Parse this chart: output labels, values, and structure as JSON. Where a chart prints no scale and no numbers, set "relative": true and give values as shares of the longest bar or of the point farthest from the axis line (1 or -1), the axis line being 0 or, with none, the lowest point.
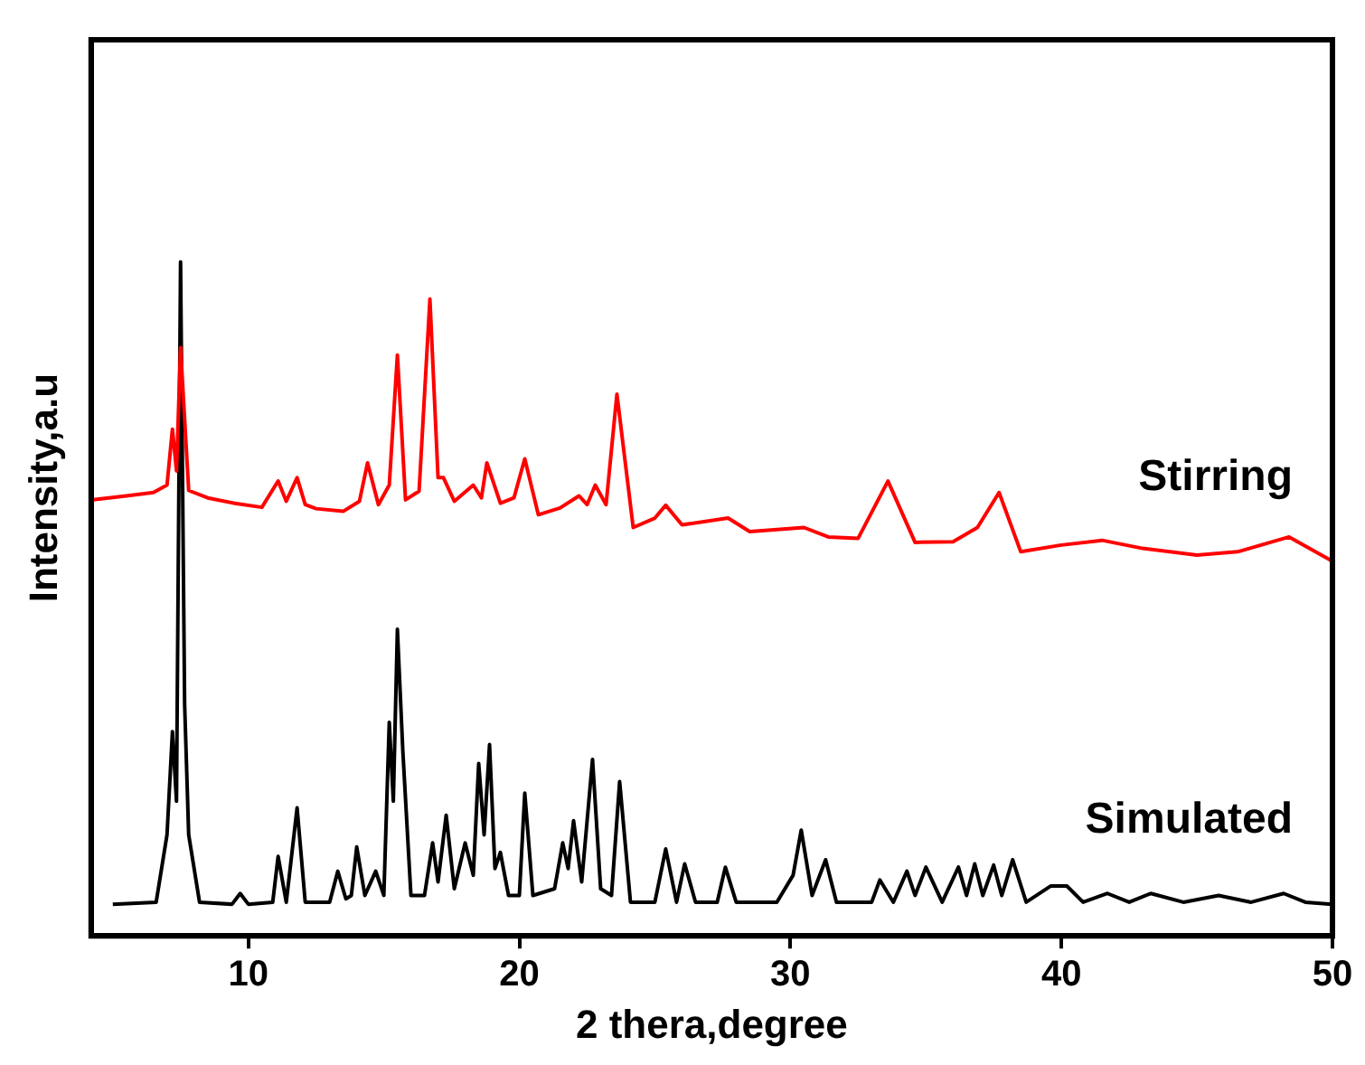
{
  "chart_data": {
    "type": "line",
    "xlabel": "2 thera,degree",
    "ylabel": "Intensity,a.u",
    "relative": true,
    "xlim": [
      4.2,
      50
    ],
    "xticks": [
      10,
      20,
      30,
      40,
      50
    ],
    "grid": false,
    "legend": false,
    "marker": "none",
    "line_style": "solid",
    "series": [
      {
        "name": "Stirring",
        "color": "#ff0000",
        "x": [
          4.2,
          5.5,
          6.5,
          7.0,
          7.2,
          7.35,
          7.5,
          7.8,
          8.5,
          9.5,
          10.5,
          11.1,
          11.4,
          11.8,
          12.1,
          12.5,
          13.5,
          14.1,
          14.4,
          14.8,
          15.2,
          15.5,
          15.8,
          16.3,
          16.7,
          17.0,
          17.2,
          17.6,
          18.3,
          18.6,
          18.8,
          19.3,
          19.8,
          20.2,
          20.7,
          21.5,
          22.2,
          22.5,
          22.8,
          23.2,
          23.6,
          24.2,
          25.0,
          25.4,
          26.0,
          27.7,
          28.5,
          30.5,
          31.4,
          32.5,
          33.6,
          34.6,
          36.0,
          36.9,
          37.7,
          38.5,
          40.0,
          41.5,
          43.0,
          45.0,
          46.5,
          48.4,
          50.0
        ],
        "values": [
          0.647,
          0.653,
          0.658,
          0.669,
          0.752,
          0.69,
          0.873,
          0.661,
          0.65,
          0.642,
          0.636,
          0.675,
          0.645,
          0.68,
          0.64,
          0.634,
          0.63,
          0.645,
          0.702,
          0.64,
          0.669,
          0.862,
          0.647,
          0.66,
          0.945,
          0.68,
          0.68,
          0.645,
          0.669,
          0.65,
          0.702,
          0.642,
          0.65,
          0.708,
          0.625,
          0.635,
          0.653,
          0.64,
          0.669,
          0.64,
          0.804,
          0.606,
          0.62,
          0.639,
          0.61,
          0.62,
          0.6,
          0.606,
          0.592,
          0.59,
          0.675,
          0.584,
          0.585,
          0.606,
          0.658,
          0.57,
          0.58,
          0.587,
          0.575,
          0.565,
          0.57,
          0.592,
          0.556
        ]
      },
      {
        "name": "Simulated",
        "color": "#000000",
        "x": [
          5.0,
          6.6,
          7.0,
          7.2,
          7.35,
          7.5,
          7.65,
          7.8,
          8.2,
          9.4,
          9.7,
          10.0,
          10.9,
          11.1,
          11.4,
          11.8,
          12.1,
          13.0,
          13.3,
          13.6,
          13.8,
          14.0,
          14.3,
          14.7,
          15.0,
          15.2,
          15.35,
          15.5,
          15.7,
          16.0,
          16.5,
          16.8,
          17.0,
          17.3,
          17.6,
          18.0,
          18.3,
          18.5,
          18.7,
          18.9,
          19.1,
          19.3,
          19.6,
          20.0,
          20.2,
          20.5,
          21.3,
          21.6,
          21.8,
          22.0,
          22.3,
          22.7,
          23.0,
          23.4,
          23.7,
          24.1,
          25.0,
          25.4,
          25.8,
          26.1,
          26.5,
          27.3,
          27.6,
          28.0,
          29.5,
          30.1,
          30.4,
          30.8,
          31.3,
          31.7,
          33.0,
          33.3,
          33.8,
          34.3,
          34.6,
          35.0,
          35.6,
          36.2,
          36.5,
          36.8,
          37.1,
          37.5,
          37.8,
          38.2,
          38.7,
          39.6,
          40.2,
          40.8,
          41.7,
          42.5,
          43.3,
          44.5,
          45.8,
          47.0,
          48.2,
          49.0,
          50.0
        ],
        "values": [
          0.047,
          0.05,
          0.15,
          0.303,
          0.2,
          1.0,
          0.344,
          0.15,
          0.05,
          0.047,
          0.063,
          0.047,
          0.05,
          0.118,
          0.05,
          0.19,
          0.05,
          0.05,
          0.096,
          0.055,
          0.06,
          0.132,
          0.06,
          0.096,
          0.06,
          0.317,
          0.2,
          0.455,
          0.275,
          0.06,
          0.06,
          0.138,
          0.08,
          0.179,
          0.07,
          0.138,
          0.09,
          0.256,
          0.15,
          0.284,
          0.1,
          0.124,
          0.06,
          0.06,
          0.212,
          0.06,
          0.07,
          0.138,
          0.1,
          0.171,
          0.08,
          0.262,
          0.07,
          0.06,
          0.229,
          0.05,
          0.05,
          0.129,
          0.05,
          0.107,
          0.05,
          0.05,
          0.102,
          0.05,
          0.05,
          0.09,
          0.157,
          0.06,
          0.113,
          0.05,
          0.05,
          0.083,
          0.05,
          0.096,
          0.06,
          0.102,
          0.05,
          0.102,
          0.06,
          0.107,
          0.06,
          0.105,
          0.06,
          0.113,
          0.05,
          0.074,
          0.074,
          0.05,
          0.063,
          0.05,
          0.063,
          0.05,
          0.06,
          0.05,
          0.063,
          0.05,
          0.047
        ]
      }
    ]
  }
}
